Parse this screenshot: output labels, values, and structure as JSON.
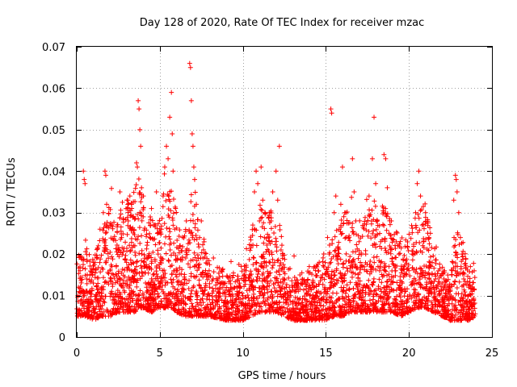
{
  "chart_data": {
    "type": "scatter",
    "title": "Day 128 of 2020, Rate Of TEC Index for receiver mzac",
    "xlabel": "GPS time / hours",
    "ylabel": "ROTI / TECUs",
    "xlim": [
      0,
      25
    ],
    "ylim": [
      0,
      0.07
    ],
    "x_ticks": [
      0,
      5,
      10,
      15,
      20,
      25
    ],
    "y_ticks": [
      0,
      0.01,
      0.02,
      0.03,
      0.04,
      0.05,
      0.06,
      0.07
    ],
    "x_tick_labels": [
      "0",
      "5",
      "10",
      "15",
      "20",
      "25"
    ],
    "y_tick_labels": [
      "0",
      "0.01",
      "0.02",
      "0.03",
      "0.04",
      "0.05",
      "0.06",
      "0.07"
    ],
    "grid": true,
    "marker": "+",
    "color": "#ff0000",
    "series": [
      {
        "name": "ROTI",
        "points": [
          [
            0.1,
            0.012
          ],
          [
            0.2,
            0.016
          ],
          [
            0.3,
            0.009
          ],
          [
            0.4,
            0.04
          ],
          [
            0.45,
            0.038
          ],
          [
            0.5,
            0.037
          ],
          [
            0.6,
            0.014
          ],
          [
            0.7,
            0.007
          ],
          [
            0.8,
            0.011
          ],
          [
            0.9,
            0.005
          ],
          [
            1.0,
            0.013
          ],
          [
            1.1,
            0.018
          ],
          [
            1.2,
            0.009
          ],
          [
            1.3,
            0.022
          ],
          [
            1.4,
            0.026
          ],
          [
            1.5,
            0.012
          ],
          [
            1.6,
            0.03
          ],
          [
            1.7,
            0.04
          ],
          [
            1.75,
            0.039
          ],
          [
            1.8,
            0.032
          ],
          [
            1.9,
            0.019
          ],
          [
            2.0,
            0.027
          ],
          [
            2.1,
            0.011
          ],
          [
            2.2,
            0.015
          ],
          [
            2.4,
            0.008
          ],
          [
            2.5,
            0.021
          ],
          [
            2.6,
            0.035
          ],
          [
            2.7,
            0.024
          ],
          [
            2.8,
            0.013
          ],
          [
            2.9,
            0.009
          ],
          [
            3.0,
            0.018
          ],
          [
            3.1,
            0.028
          ],
          [
            3.2,
            0.034
          ],
          [
            3.3,
            0.016
          ],
          [
            3.4,
            0.011
          ],
          [
            3.5,
            0.022
          ],
          [
            3.6,
            0.042
          ],
          [
            3.65,
            0.041
          ],
          [
            3.7,
            0.057
          ],
          [
            3.75,
            0.055
          ],
          [
            3.8,
            0.05
          ],
          [
            3.85,
            0.046
          ],
          [
            3.9,
            0.036
          ],
          [
            4.0,
            0.029
          ],
          [
            4.1,
            0.019
          ],
          [
            4.2,
            0.012
          ],
          [
            4.3,
            0.008
          ],
          [
            4.4,
            0.024
          ],
          [
            4.5,
            0.031
          ],
          [
            4.6,
            0.015
          ],
          [
            4.7,
            0.027
          ],
          [
            4.8,
            0.035
          ],
          [
            4.9,
            0.02
          ],
          [
            5.0,
            0.013
          ],
          [
            5.1,
            0.026
          ],
          [
            5.2,
            0.034
          ],
          [
            5.3,
            0.041
          ],
          [
            5.4,
            0.046
          ],
          [
            5.5,
            0.043
          ],
          [
            5.6,
            0.053
          ],
          [
            5.7,
            0.059
          ],
          [
            5.75,
            0.049
          ],
          [
            5.8,
            0.04
          ],
          [
            5.9,
            0.026
          ],
          [
            6.0,
            0.016
          ],
          [
            6.1,
            0.011
          ],
          [
            6.2,
            0.022
          ],
          [
            6.3,
            0.008
          ],
          [
            6.4,
            0.007
          ],
          [
            6.5,
            0.014
          ],
          [
            6.6,
            0.028
          ],
          [
            6.8,
            0.066
          ],
          [
            6.85,
            0.065
          ],
          [
            6.9,
            0.057
          ],
          [
            6.95,
            0.049
          ],
          [
            7.0,
            0.046
          ],
          [
            7.05,
            0.041
          ],
          [
            7.1,
            0.038
          ],
          [
            7.2,
            0.032
          ],
          [
            7.4,
            0.024
          ],
          [
            7.5,
            0.028
          ],
          [
            7.6,
            0.019
          ],
          [
            7.8,
            0.015
          ],
          [
            8.0,
            0.012
          ],
          [
            8.2,
            0.009
          ],
          [
            8.4,
            0.01
          ],
          [
            8.6,
            0.007
          ],
          [
            8.8,
            0.012
          ],
          [
            9.0,
            0.008
          ],
          [
            9.2,
            0.011
          ],
          [
            9.4,
            0.006
          ],
          [
            9.6,
            0.009
          ],
          [
            9.8,
            0.013
          ],
          [
            10.0,
            0.01
          ],
          [
            10.2,
            0.007
          ],
          [
            10.4,
            0.015
          ],
          [
            10.5,
            0.022
          ],
          [
            10.6,
            0.027
          ],
          [
            10.7,
            0.035
          ],
          [
            10.8,
            0.04
          ],
          [
            10.9,
            0.037
          ],
          [
            11.0,
            0.028
          ],
          [
            11.1,
            0.041
          ],
          [
            11.2,
            0.033
          ],
          [
            11.3,
            0.024
          ],
          [
            11.4,
            0.018
          ],
          [
            11.5,
            0.013
          ],
          [
            11.6,
            0.02
          ],
          [
            11.7,
            0.028
          ],
          [
            11.8,
            0.035
          ],
          [
            12.0,
            0.04
          ],
          [
            12.1,
            0.033
          ],
          [
            12.2,
            0.046
          ],
          [
            12.3,
            0.021
          ],
          [
            12.4,
            0.014
          ],
          [
            12.6,
            0.009
          ],
          [
            12.8,
            0.012
          ],
          [
            13.0,
            0.008
          ],
          [
            13.2,
            0.011
          ],
          [
            13.4,
            0.006
          ],
          [
            13.6,
            0.013
          ],
          [
            13.8,
            0.009
          ],
          [
            14.0,
            0.017
          ],
          [
            14.2,
            0.012
          ],
          [
            14.4,
            0.01
          ],
          [
            14.6,
            0.018
          ],
          [
            14.8,
            0.015
          ],
          [
            15.0,
            0.011
          ],
          [
            15.1,
            0.024
          ],
          [
            15.2,
            0.02
          ],
          [
            15.3,
            0.055
          ],
          [
            15.35,
            0.054
          ],
          [
            15.5,
            0.03
          ],
          [
            15.6,
            0.034
          ],
          [
            15.7,
            0.019
          ],
          [
            15.8,
            0.026
          ],
          [
            15.9,
            0.032
          ],
          [
            16.0,
            0.041
          ],
          [
            16.2,
            0.03
          ],
          [
            16.4,
            0.024
          ],
          [
            16.6,
            0.043
          ],
          [
            16.7,
            0.035
          ],
          [
            16.8,
            0.028
          ],
          [
            17.0,
            0.023
          ],
          [
            17.2,
            0.017
          ],
          [
            17.4,
            0.02
          ],
          [
            17.6,
            0.034
          ],
          [
            17.8,
            0.043
          ],
          [
            17.9,
            0.053
          ],
          [
            18.0,
            0.037
          ],
          [
            18.1,
            0.028
          ],
          [
            18.3,
            0.023
          ],
          [
            18.5,
            0.044
          ],
          [
            18.6,
            0.043
          ],
          [
            18.7,
            0.036
          ],
          [
            18.8,
            0.025
          ],
          [
            19.0,
            0.019
          ],
          [
            19.2,
            0.016
          ],
          [
            19.4,
            0.02
          ],
          [
            19.6,
            0.013
          ],
          [
            19.8,
            0.011
          ],
          [
            20.0,
            0.016
          ],
          [
            20.2,
            0.02
          ],
          [
            20.4,
            0.03
          ],
          [
            20.5,
            0.037
          ],
          [
            20.6,
            0.04
          ],
          [
            20.7,
            0.034
          ],
          [
            20.8,
            0.027
          ],
          [
            20.9,
            0.023
          ],
          [
            21.0,
            0.03
          ],
          [
            21.2,
            0.024
          ],
          [
            21.4,
            0.018
          ],
          [
            21.6,
            0.014
          ],
          [
            21.8,
            0.011
          ],
          [
            22.0,
            0.009
          ],
          [
            22.2,
            0.007
          ],
          [
            22.4,
            0.012
          ],
          [
            22.6,
            0.008
          ],
          [
            22.7,
            0.033
          ],
          [
            22.8,
            0.039
          ],
          [
            22.85,
            0.038
          ],
          [
            22.9,
            0.035
          ],
          [
            23.0,
            0.03
          ],
          [
            23.1,
            0.024
          ],
          [
            23.2,
            0.02
          ],
          [
            23.3,
            0.014
          ],
          [
            23.4,
            0.01
          ],
          [
            23.5,
            0.008
          ],
          [
            23.6,
            0.012
          ],
          [
            23.7,
            0.017
          ],
          [
            23.8,
            0.011
          ],
          [
            23.9,
            0.009
          ]
        ]
      }
    ],
    "envelope": {
      "hours": [
        0,
        0.5,
        1,
        1.5,
        2,
        2.5,
        3,
        3.5,
        3.75,
        4,
        4.5,
        5,
        5.5,
        5.75,
        6,
        6.5,
        6.9,
        7.2,
        7.5,
        8,
        9,
        10,
        10.5,
        11,
        11.5,
        12,
        12.5,
        13,
        14,
        15,
        15.5,
        16,
        16.5,
        17,
        17.5,
        18,
        18.5,
        19,
        19.5,
        20,
        20.5,
        20.8,
        21,
        21.5,
        22,
        22.5,
        22.8,
        23.2,
        23.6,
        24
      ],
      "low": [
        0.005,
        0.005,
        0.004,
        0.005,
        0.005,
        0.006,
        0.006,
        0.006,
        0.007,
        0.007,
        0.006,
        0.007,
        0.007,
        0.007,
        0.006,
        0.005,
        0.005,
        0.005,
        0.005,
        0.005,
        0.004,
        0.004,
        0.005,
        0.006,
        0.006,
        0.006,
        0.005,
        0.004,
        0.004,
        0.004,
        0.005,
        0.005,
        0.006,
        0.006,
        0.006,
        0.006,
        0.006,
        0.006,
        0.005,
        0.006,
        0.007,
        0.007,
        0.007,
        0.006,
        0.005,
        0.004,
        0.004,
        0.004,
        0.004,
        0.005
      ],
      "high": [
        0.02,
        0.022,
        0.02,
        0.025,
        0.032,
        0.03,
        0.033,
        0.036,
        0.04,
        0.035,
        0.028,
        0.032,
        0.038,
        0.036,
        0.03,
        0.025,
        0.035,
        0.031,
        0.026,
        0.02,
        0.016,
        0.015,
        0.025,
        0.032,
        0.03,
        0.032,
        0.02,
        0.015,
        0.016,
        0.02,
        0.025,
        0.03,
        0.031,
        0.028,
        0.03,
        0.034,
        0.032,
        0.027,
        0.024,
        0.025,
        0.032,
        0.034,
        0.03,
        0.024,
        0.017,
        0.014,
        0.028,
        0.024,
        0.016,
        0.016
      ]
    },
    "random_seed": 128,
    "samples_per_hour": 150
  }
}
